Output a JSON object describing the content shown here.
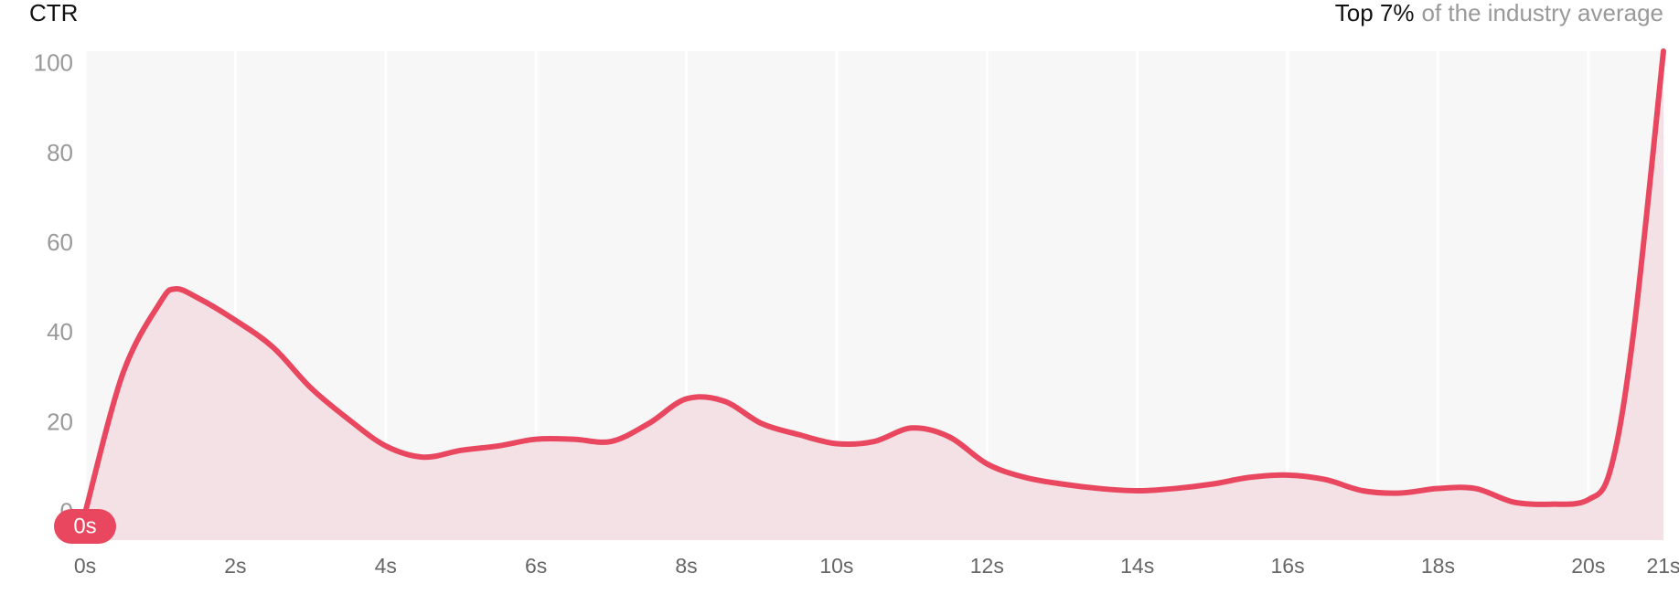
{
  "chart_data": {
    "type": "line",
    "title": "CTR",
    "subtitle": {
      "highlight": "Top 7%",
      "text": "of the industry average"
    },
    "x": [
      0,
      0.5,
      1,
      1.2,
      1.5,
      2,
      2.5,
      3,
      3.5,
      4,
      4.5,
      5,
      5.5,
      6,
      6.5,
      7,
      7.5,
      8,
      8.5,
      9,
      9.5,
      10,
      10.5,
      11,
      11.5,
      12,
      12.5,
      13,
      13.5,
      14,
      14.5,
      15,
      15.5,
      16,
      16.5,
      17,
      17.5,
      18,
      18.5,
      19,
      19.5,
      20,
      20.3,
      20.6,
      21
    ],
    "series": [
      {
        "name": "CTR",
        "color": "#e8475f",
        "values": [
          0,
          31,
          47,
          50,
          48,
          43,
          37,
          28,
          21,
          15,
          12.5,
          14,
          15,
          16.5,
          16.5,
          16,
          20,
          25.5,
          25,
          20,
          17.5,
          15.5,
          16,
          19,
          17,
          11,
          8,
          6.5,
          5.5,
          5,
          5.5,
          6.5,
          8,
          8.5,
          7.5,
          5,
          4.5,
          5.5,
          5.5,
          2.5,
          2,
          3,
          10,
          40,
          103
        ]
      }
    ],
    "fill_color": "#f4e1e6",
    "background": "#f7f7f7",
    "marker": {
      "x": 0,
      "label": "0s"
    },
    "xlim": [
      0,
      21
    ],
    "xticks": [
      {
        "value": 0,
        "label": "0s"
      },
      {
        "value": 2,
        "label": "2s"
      },
      {
        "value": 4,
        "label": "4s"
      },
      {
        "value": 6,
        "label": "6s"
      },
      {
        "value": 8,
        "label": "8s"
      },
      {
        "value": 10,
        "label": "10s"
      },
      {
        "value": 12,
        "label": "12s"
      },
      {
        "value": 14,
        "label": "14s"
      },
      {
        "value": 16,
        "label": "16s"
      },
      {
        "value": 18,
        "label": "18s"
      },
      {
        "value": 20,
        "label": "20s"
      },
      {
        "value": 21,
        "label": "21s"
      }
    ],
    "ylim": [
      -6,
      103
    ],
    "yticks": [
      0,
      20,
      40,
      60,
      80,
      100
    ],
    "grid": true
  }
}
